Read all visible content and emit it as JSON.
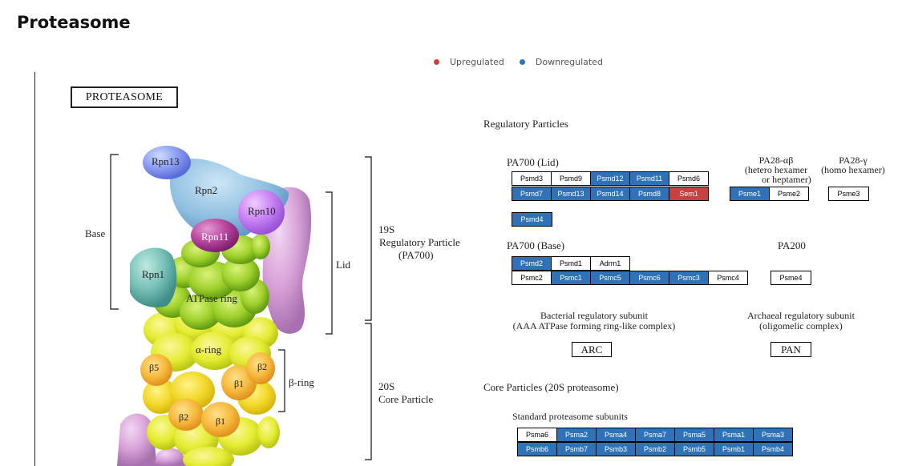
{
  "page": {
    "title": "Proteasome"
  },
  "legend": {
    "items": [
      {
        "label": "Upregulated",
        "color": "#c8403f"
      },
      {
        "label": "Downregulated",
        "color": "#2f72b7"
      }
    ]
  },
  "colors": {
    "downregulated": "#2f72b7",
    "upregulated": "#c8403f",
    "none": "#ffffff"
  },
  "diagram": {
    "title_box": "PROTEASOME",
    "structure_labels": {
      "base": "Base",
      "lid": "Lid",
      "rpn13": "Rpn13",
      "rpn2": "Rpn2",
      "rpn10": "Rpn10",
      "rpn11": "Rpn11",
      "rpn1": "Rpn1",
      "atpase_ring": "ATPase ring",
      "alpha_ring": "α-ring",
      "beta_ring": "β-ring",
      "b5": "β5",
      "b1_a": "β1",
      "b2_a": "β2",
      "b2_b": "β2",
      "b1_b": "β1",
      "rp19s_line1": "19S",
      "rp19s_line2": "Regulatory Particle",
      "rp19s_line3": "(PA700)",
      "cp20s_line1": "20S",
      "cp20s_line2": "Core Particle"
    },
    "section_labels": {
      "regulatory_particles": "Regulatory Particles",
      "pa700_lid": "PA700 (Lid)",
      "pa28ab_line1": "PA28-αβ",
      "pa28ab_line2": "(hetero hexamer",
      "pa28ab_line3": "or heptamer)",
      "pa28g_line1": "PA28-γ",
      "pa28g_line2": "(homo hexamer)",
      "pa700_base": "PA700 (Base)",
      "pa200": "PA200",
      "bacterial_line1": "Bacterial regulatory subunit",
      "bacterial_line2": "(AAA ATPase forming ring-like complex)",
      "archaeal_line1": "Archaeal regulatory subunit",
      "archaeal_line2": "(oligomelic complex)",
      "arc": "ARC",
      "pan": "PAN",
      "core_particles": "Core Particles (20S proteasome)",
      "standard_subunits": "Standard proteasome subunits"
    },
    "gene_groups": {
      "pa700_lid_row1": [
        {
          "name": "Psmd3",
          "status": "none"
        },
        {
          "name": "Psmd9",
          "status": "none"
        },
        {
          "name": "Psmd12",
          "status": "down"
        },
        {
          "name": "Psmd11",
          "status": "down"
        },
        {
          "name": "Psmd6",
          "status": "none"
        }
      ],
      "pa700_lid_row2": [
        {
          "name": "Psmd7",
          "status": "down"
        },
        {
          "name": "Psmd13",
          "status": "down"
        },
        {
          "name": "Psmd14",
          "status": "down"
        },
        {
          "name": "Psmd8",
          "status": "down"
        },
        {
          "name": "Sem1",
          "status": "up"
        }
      ],
      "pa700_lid_row3": [
        {
          "name": "Psmd4",
          "status": "down"
        }
      ],
      "pa28ab": [
        {
          "name": "Psme1",
          "status": "down"
        },
        {
          "name": "Psme2",
          "status": "none"
        }
      ],
      "pa28g": [
        {
          "name": "Psme3",
          "status": "none"
        }
      ],
      "pa700_base_row1": [
        {
          "name": "Psmd2",
          "status": "down"
        },
        {
          "name": "Psmd1",
          "status": "none"
        },
        {
          "name": "Adrm1",
          "status": "none"
        }
      ],
      "pa700_base_row2": [
        {
          "name": "Psmc2",
          "status": "none"
        },
        {
          "name": "Psmc1",
          "status": "down"
        },
        {
          "name": "Psmc5",
          "status": "down"
        },
        {
          "name": "Psmc6",
          "status": "down"
        },
        {
          "name": "Psmc3",
          "status": "down"
        },
        {
          "name": "Psmc4",
          "status": "none"
        }
      ],
      "pa200": [
        {
          "name": "Psme4",
          "status": "none"
        }
      ],
      "core_row1": [
        {
          "name": "Psma6",
          "status": "none"
        },
        {
          "name": "Psma2",
          "status": "down"
        },
        {
          "name": "Psma4",
          "status": "down"
        },
        {
          "name": "Psma7",
          "status": "down"
        },
        {
          "name": "Psma5",
          "status": "down"
        },
        {
          "name": "Psma1",
          "status": "down"
        },
        {
          "name": "Psma3",
          "status": "down"
        }
      ],
      "core_row2": [
        {
          "name": "Psmb6",
          "status": "down"
        },
        {
          "name": "Psmb7",
          "status": "down"
        },
        {
          "name": "Psmb3",
          "status": "down"
        },
        {
          "name": "Psmb2",
          "status": "down"
        },
        {
          "name": "Psmb5",
          "status": "down"
        },
        {
          "name": "Psmb1",
          "status": "down"
        },
        {
          "name": "Psmb4",
          "status": "down"
        }
      ]
    }
  }
}
